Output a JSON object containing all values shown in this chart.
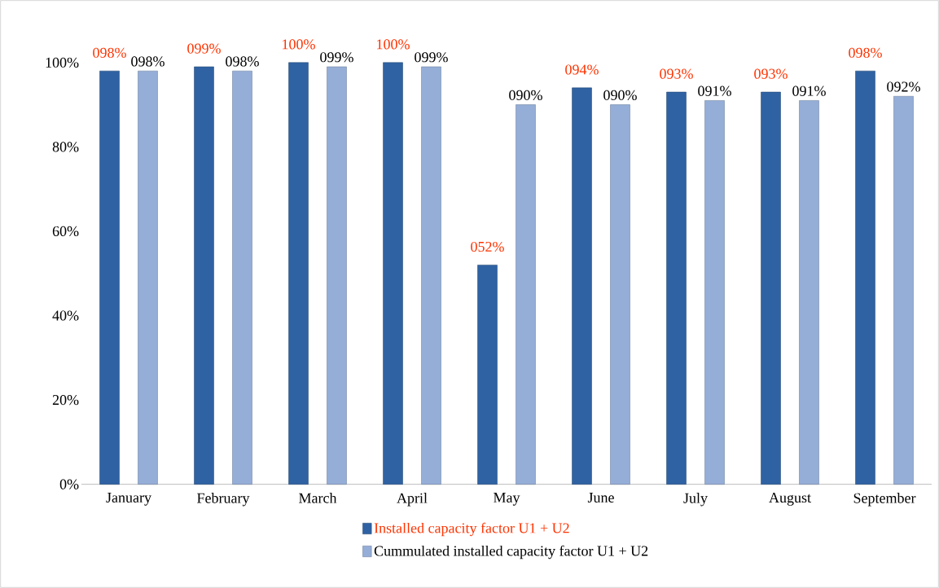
{
  "chart_data": {
    "type": "bar",
    "categories": [
      "January",
      "February",
      "March",
      "April",
      "May",
      "June",
      "July",
      "August",
      "September"
    ],
    "series": [
      {
        "name": "Installed capacity factor U1 + U2",
        "color": "#2f62a3",
        "values": [
          98,
          99,
          100,
          100,
          52,
          94,
          93,
          93,
          98
        ],
        "value_labels": [
          "098%",
          "099%",
          "100%",
          "100%",
          "052%",
          "094%",
          "093%",
          "093%",
          "098%"
        ]
      },
      {
        "name": "Cummulated installed capacity factor U1 + U2",
        "color": "#95aed8",
        "values": [
          98,
          98,
          99,
          99,
          90,
          90,
          91,
          91,
          92
        ],
        "value_labels": [
          "098%",
          "098%",
          "099%",
          "099%",
          "090%",
          "090%",
          "091%",
          "091%",
          "092%"
        ]
      }
    ],
    "ylim": [
      0,
      100
    ],
    "yticks": [
      {
        "value": 0,
        "label": "0%"
      },
      {
        "value": 20,
        "label": "20%"
      },
      {
        "value": 40,
        "label": "40%"
      },
      {
        "value": 60,
        "label": "60%"
      },
      {
        "value": 80,
        "label": "80%"
      },
      {
        "value": 100,
        "label": "100%"
      }
    ],
    "legend": "bottom"
  }
}
